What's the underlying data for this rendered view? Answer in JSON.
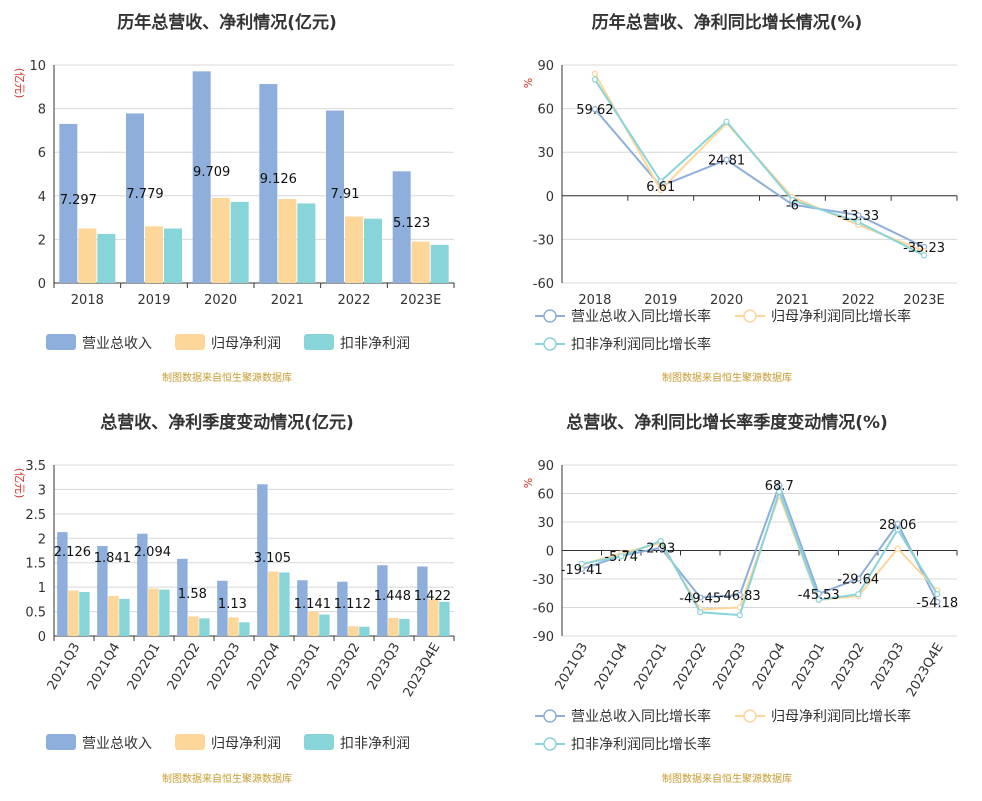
{
  "colors": {
    "revenue": "#8eaedb",
    "parent_profit": "#fdd699",
    "deducted_profit": "#88d5d9",
    "source": "#c79b2f",
    "unit": "#d9312b",
    "grid": "#d8d8d8",
    "axis": "#333333"
  },
  "chart_data": [
    {
      "id": "annual-bar",
      "type": "bar",
      "title": "历年总营收、净利情况(亿元)",
      "unit_label": "(亿元)",
      "categories": [
        "2018",
        "2019",
        "2020",
        "2021",
        "2022",
        "2023E"
      ],
      "series": [
        {
          "name": "营业总收入",
          "color_key": "revenue",
          "values": [
            7.297,
            7.779,
            9.709,
            9.126,
            7.91,
            5.123
          ],
          "labels": [
            "7.297",
            "7.779",
            "9.709",
            "9.126",
            "7.91",
            "5.123"
          ]
        },
        {
          "name": "归母净利润",
          "color_key": "parent_profit",
          "values": [
            2.5,
            2.6,
            3.9,
            3.85,
            3.05,
            1.9
          ]
        },
        {
          "name": "扣非净利润",
          "color_key": "deducted_profit",
          "values": [
            2.25,
            2.5,
            3.72,
            3.65,
            2.95,
            1.75
          ]
        }
      ],
      "ylim": [
        0,
        10
      ],
      "yticks": [
        0,
        2,
        4,
        6,
        8,
        10
      ],
      "ytick_labels": [
        "0",
        "2",
        "4",
        "6",
        "8",
        "10"
      ],
      "legend": "bottom",
      "source": "制图数据来自恒生聚源数据库"
    },
    {
      "id": "annual-line",
      "type": "line",
      "title": "历年总营收、净利同比增长情况(%)",
      "unit_label": "%",
      "categories": [
        "2018",
        "2019",
        "2020",
        "2021",
        "2022",
        "2023E"
      ],
      "series": [
        {
          "name": "营业总收入同比增长率",
          "color_key": "revenue",
          "values": [
            59.62,
            6.61,
            24.81,
            -6,
            -13.33,
            -35.23
          ],
          "labels": [
            "59.62",
            "6.61",
            "24.81",
            "-6",
            "-13.33",
            "-35.23"
          ]
        },
        {
          "name": "归母净利润同比增长率",
          "color_key": "parent_profit",
          "values": [
            84,
            4,
            50,
            -1,
            -20,
            -38
          ]
        },
        {
          "name": "扣非净利润同比增长率",
          "color_key": "deducted_profit",
          "values": [
            80,
            10,
            51,
            -3,
            -18,
            -41
          ]
        }
      ],
      "ylim": [
        -60,
        90
      ],
      "yticks": [
        -60,
        -30,
        0,
        30,
        60,
        90
      ],
      "ytick_labels": [
        "-60",
        "-30",
        "0",
        "30",
        "60",
        "90"
      ],
      "legend": "bottom",
      "source": "制图数据来自恒生聚源数据库"
    },
    {
      "id": "quarter-bar",
      "type": "bar",
      "title": "总营收、净利季度变动情况(亿元)",
      "unit_label": "(亿元)",
      "categories": [
        "2021Q3",
        "2021Q4",
        "2022Q1",
        "2022Q2",
        "2022Q3",
        "2022Q4",
        "2023Q1",
        "2023Q2",
        "2023Q3",
        "2023Q4E"
      ],
      "series": [
        {
          "name": "营业总收入",
          "color_key": "revenue",
          "values": [
            2.126,
            1.841,
            2.094,
            1.58,
            1.13,
            3.105,
            1.141,
            1.112,
            1.448,
            1.422
          ],
          "labels": [
            "2.126",
            "1.841",
            "2.094",
            "1.58",
            "1.13",
            "3.105",
            "1.141",
            "1.112",
            "1.448",
            "1.422"
          ]
        },
        {
          "name": "归母净利润",
          "color_key": "parent_profit",
          "values": [
            0.93,
            0.82,
            0.97,
            0.4,
            0.38,
            1.32,
            0.5,
            0.2,
            0.37,
            0.75
          ]
        },
        {
          "name": "扣非净利润",
          "color_key": "deducted_profit",
          "values": [
            0.9,
            0.76,
            0.95,
            0.36,
            0.28,
            1.3,
            0.44,
            0.19,
            0.35,
            0.7
          ]
        }
      ],
      "ylim": [
        0,
        3.5
      ],
      "yticks": [
        0,
        0.5,
        1,
        1.5,
        2,
        2.5,
        3,
        3.5
      ],
      "ytick_labels": [
        "0",
        "0.5",
        "1",
        "1.5",
        "2",
        "2.5",
        "3",
        "3.5"
      ],
      "legend": "bottom",
      "source": "制图数据来自恒生聚源数据库"
    },
    {
      "id": "quarter-line",
      "type": "line",
      "title": "总营收、净利同比增长率季度变动情况(%)",
      "unit_label": "%",
      "categories": [
        "2021Q3",
        "2021Q4",
        "2022Q1",
        "2022Q2",
        "2022Q3",
        "2022Q4",
        "2023Q1",
        "2023Q2",
        "2023Q3",
        "2023Q4E"
      ],
      "series": [
        {
          "name": "营业总收入同比增长率",
          "color_key": "revenue",
          "values": [
            -19.41,
            -5.74,
            2.93,
            -49.45,
            -46.83,
            68.7,
            -45.53,
            -29.64,
            28.06,
            -54.18
          ],
          "labels": [
            "-19.41",
            "-5.74",
            "2.93",
            "-49.45",
            "-46.83",
            "68.7",
            "-45.53",
            "-29.64",
            "28.06",
            "-54.18"
          ]
        },
        {
          "name": "归母净利润同比增长率",
          "color_key": "parent_profit",
          "values": [
            -15,
            -3,
            8,
            -62,
            -60,
            58,
            -52,
            -48,
            2,
            -42
          ]
        },
        {
          "name": "扣非净利润同比增长率",
          "color_key": "deducted_profit",
          "values": [
            -14,
            -6,
            10,
            -65,
            -68,
            62,
            -52,
            -46,
            22,
            -46
          ]
        }
      ],
      "ylim": [
        -90,
        90
      ],
      "yticks": [
        -90,
        -60,
        -30,
        0,
        30,
        60,
        90
      ],
      "ytick_labels": [
        "-90",
        "-60",
        "-30",
        "0",
        "30",
        "60",
        "90"
      ],
      "legend": "bottom",
      "source": "制图数据来自恒生聚源数据库"
    }
  ]
}
